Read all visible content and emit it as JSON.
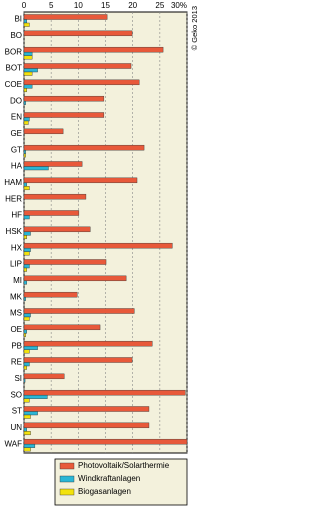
{
  "chart_data": {
    "type": "bar",
    "orientation": "horizontal",
    "categories": [
      "BI",
      "BO",
      "BOR",
      "BOT",
      "COE",
      "DO",
      "EN",
      "GE",
      "GT",
      "HA",
      "HAM",
      "HER",
      "HF",
      "HSK",
      "HX",
      "LIP",
      "MI",
      "MK",
      "MS",
      "OE",
      "PB",
      "RE",
      "SI",
      "SO",
      "ST",
      "UN",
      "WAF"
    ],
    "series": [
      {
        "name": "Photovoltaik/Solarthermie",
        "color": "#e8593a",
        "values": [
          15.3,
          19.9,
          25.6,
          19.7,
          21.2,
          14.7,
          14.7,
          7.2,
          22.1,
          10.7,
          20.8,
          11.4,
          10.1,
          12.2,
          27.3,
          15.1,
          18.8,
          9.8,
          20.3,
          14.0,
          23.6,
          19.9,
          7.4,
          29.7,
          23.0,
          23.0,
          30
        ]
      },
      {
        "name": "Windkraftanlagen",
        "color": "#29b6d6",
        "values": [
          0.5,
          0,
          1.5,
          2.5,
          1.5,
          0.3,
          1,
          0,
          0.3,
          4.5,
          0.5,
          0,
          1,
          1.2,
          1.2,
          1,
          0.5,
          0.3,
          1.2,
          0.5,
          2.5,
          1,
          0.2,
          4.3,
          2.5,
          0.5,
          2.0
        ]
      },
      {
        "name": "Biogasanlagen",
        "color": "#f2e20c",
        "values": [
          1,
          0,
          1.5,
          1.5,
          0.5,
          0,
          0.8,
          0,
          0.3,
          0,
          1,
          0,
          0,
          0.5,
          1,
          0.5,
          0,
          0,
          1,
          0.3,
          1,
          0.5,
          0,
          1,
          1.2,
          1.2,
          1.2
        ]
      }
    ],
    "xlim": [
      0,
      30
    ],
    "xticks": [
      0,
      5,
      10,
      15,
      20,
      25,
      {
        "value": 30,
        "label": "30%"
      }
    ],
    "grid": true,
    "copyright": "© Geko 2013"
  }
}
